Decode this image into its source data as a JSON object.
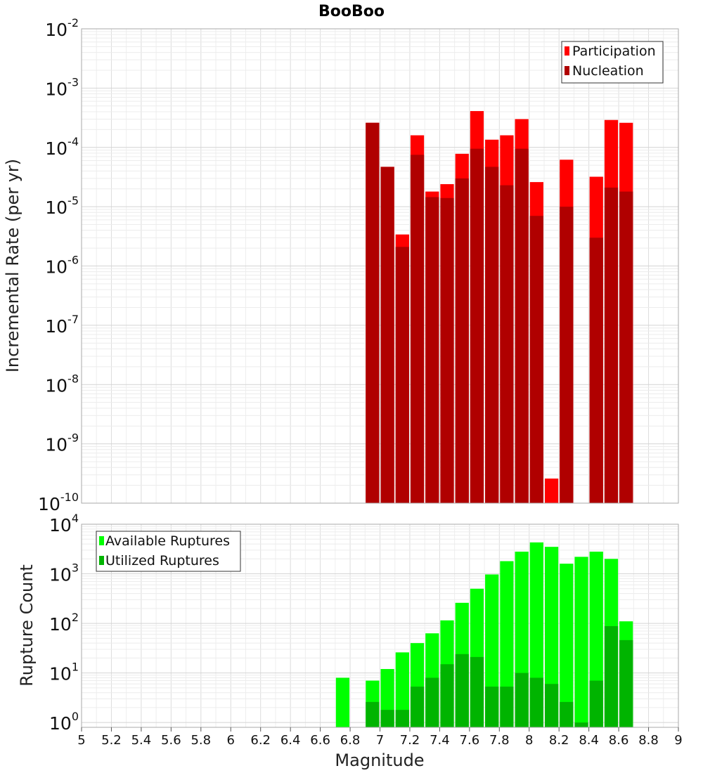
{
  "chart_data": [
    {
      "type": "bar",
      "title": "BooBoo",
      "ylabel": "Incremental Rate (per yr)",
      "xlabel": "",
      "yscale": "log",
      "ylim": [
        1e-10,
        0.01
      ],
      "xlim": [
        5,
        9
      ],
      "grid": true,
      "legend_position": "top-right",
      "x": [
        6.95,
        7.05,
        7.15,
        7.25,
        7.35,
        7.45,
        7.55,
        7.65,
        7.75,
        7.85,
        7.95,
        8.05,
        8.15,
        8.25,
        8.35,
        8.45,
        8.55,
        8.65
      ],
      "series": [
        {
          "name": "Participation",
          "color": "#ff0000",
          "values": [
            0.00026,
            4.7e-05,
            3.4e-06,
            0.00016,
            1.8e-05,
            2.4e-05,
            7.8e-05,
            0.00041,
            0.000135,
            0.00016,
            0.0003,
            2.6e-05,
            2.6e-10,
            6.2e-05,
            null,
            3.2e-05,
            0.00029,
            0.00026
          ]
        },
        {
          "name": "Nucleation",
          "color": "#b00000",
          "values": [
            0.00026,
            4.7e-05,
            2.1e-06,
            7.5e-05,
            1.45e-05,
            1.4e-05,
            3e-05,
            9.5e-05,
            4.7e-05,
            2.3e-05,
            9.5e-05,
            7e-06,
            null,
            1e-05,
            null,
            3e-06,
            2.1e-05,
            1.8e-05
          ]
        }
      ]
    },
    {
      "type": "bar",
      "title": "",
      "ylabel": "Rupture Count",
      "xlabel": "Magnitude",
      "yscale": "log",
      "ylim": [
        0.8,
        10000.0
      ],
      "xlim": [
        5,
        9
      ],
      "grid": true,
      "legend_position": "top-left",
      "x_ticks": [
        "5",
        "5.2",
        "5.4",
        "5.6",
        "5.8",
        "6",
        "6.2",
        "6.4",
        "6.6",
        "6.8",
        "7",
        "7.2",
        "7.4",
        "7.6",
        "7.8",
        "8",
        "8.2",
        "8.4",
        "8.6",
        "8.8",
        "9"
      ],
      "x": [
        6.75,
        6.95,
        7.05,
        7.15,
        7.25,
        7.35,
        7.45,
        7.55,
        7.65,
        7.75,
        7.85,
        7.95,
        8.05,
        8.15,
        8.25,
        8.35,
        8.45,
        8.55,
        8.65
      ],
      "series": [
        {
          "name": "Available Ruptures",
          "color": "#00ff00",
          "values": [
            8,
            7,
            12,
            26,
            40,
            63,
            115,
            260,
            500,
            970,
            1800,
            2800,
            4300,
            3500,
            1600,
            2200,
            2800,
            2000,
            110
          ]
        },
        {
          "name": "Utilized Ruptures",
          "color": "#00b400",
          "values": [
            null,
            2.6,
            1.8,
            1.8,
            5.3,
            8,
            15,
            24,
            21,
            5.3,
            5.3,
            10,
            8,
            6,
            2.6,
            1,
            7,
            88,
            46
          ]
        }
      ]
    }
  ]
}
